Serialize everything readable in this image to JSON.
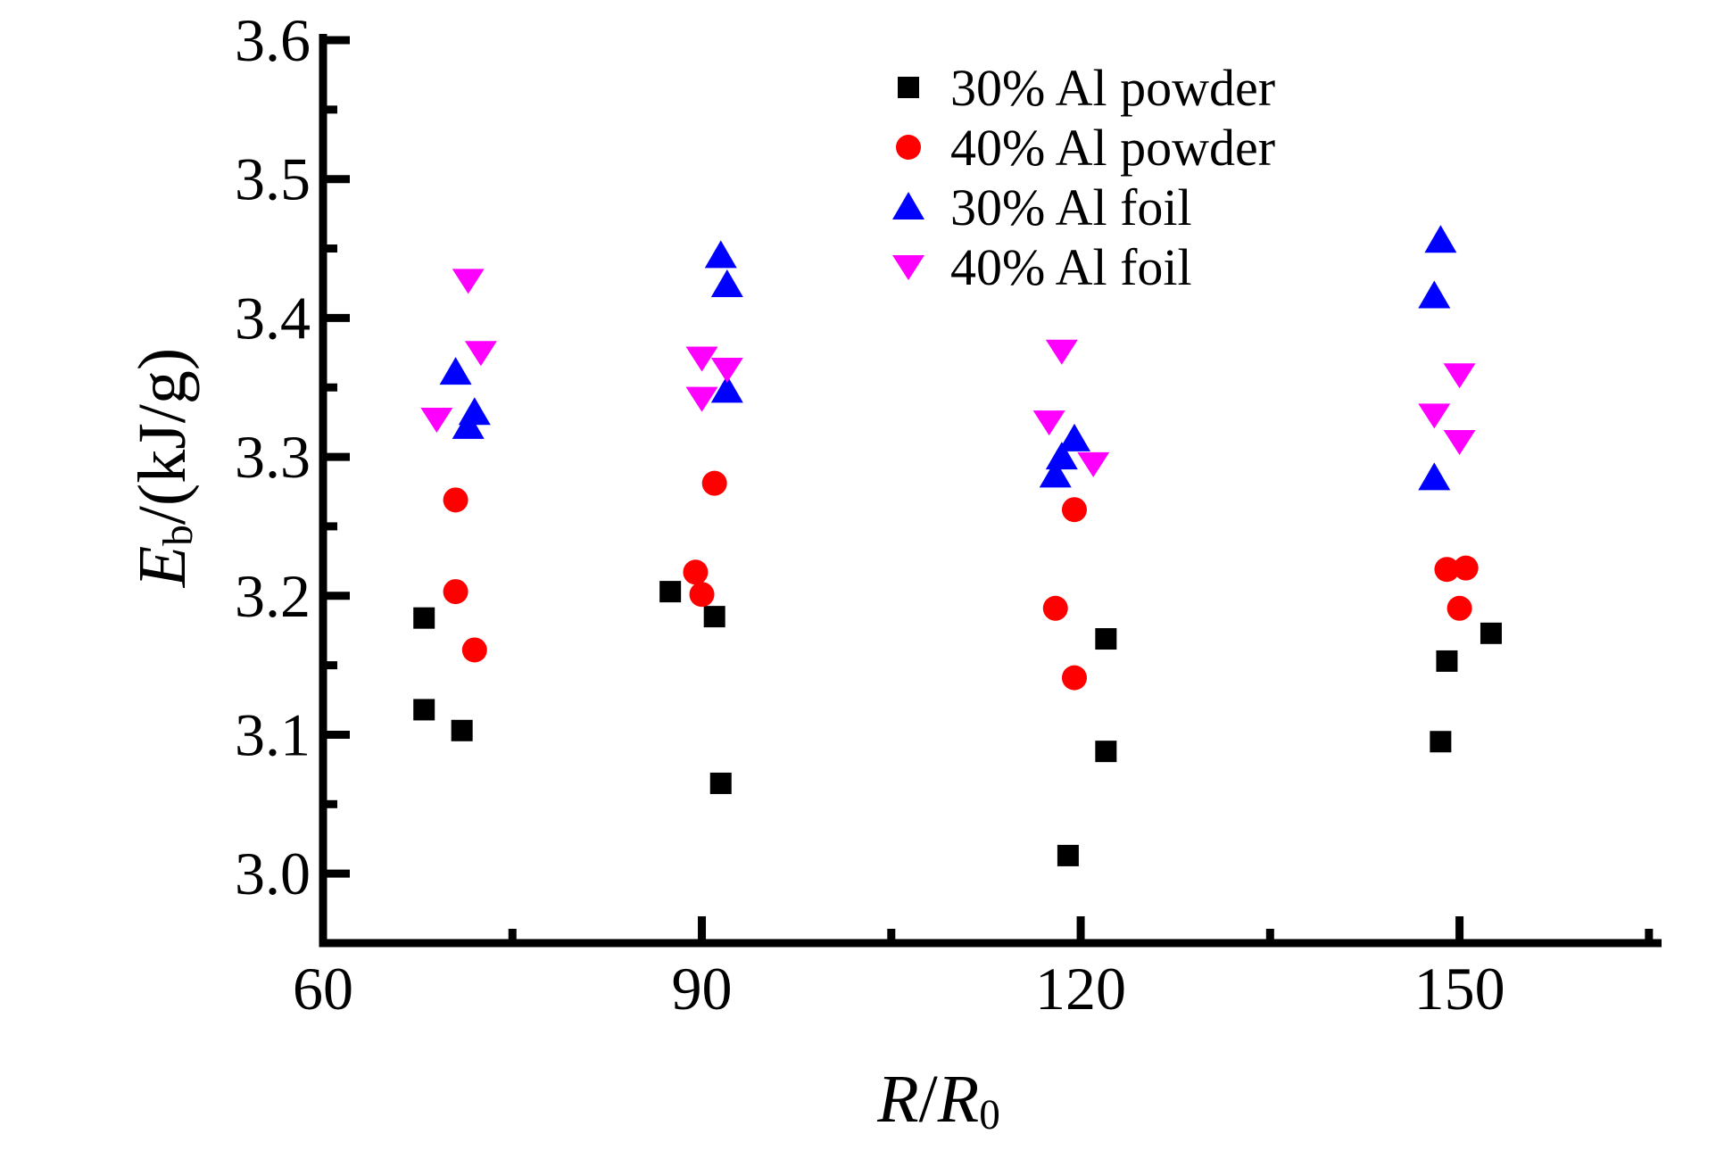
{
  "chart_data": {
    "type": "scatter",
    "title": "",
    "xlabel": "R/R0",
    "ylabel": "Eb/(kJ/g)",
    "xlim": [
      60,
      166
    ],
    "ylim": [
      2.95,
      3.6
    ],
    "x_major_ticks": [
      60,
      90,
      120,
      150
    ],
    "x_minor_ticks": [
      75,
      105,
      135,
      165
    ],
    "y_major_ticks": [
      3.0,
      3.1,
      3.2,
      3.3,
      3.4,
      3.5,
      3.6
    ],
    "y_minor_ticks": [
      3.05,
      3.15,
      3.25,
      3.35,
      3.45,
      3.55
    ],
    "grid": false,
    "legend_position": "upper-center-right",
    "series": [
      {
        "name": "30% Al powder",
        "marker": "square",
        "color": "#000000",
        "points": [
          [
            68,
            3.184
          ],
          [
            68,
            3.118
          ],
          [
            71,
            3.103
          ],
          [
            87.5,
            3.203
          ],
          [
            91,
            3.185
          ],
          [
            91.5,
            3.065
          ],
          [
            122,
            3.169
          ],
          [
            122,
            3.088
          ],
          [
            119,
            3.013
          ],
          [
            152.5,
            3.173
          ],
          [
            149,
            3.153
          ],
          [
            148.5,
            3.095
          ]
        ]
      },
      {
        "name": "40% Al powder",
        "marker": "circle",
        "color": "#ff0000",
        "points": [
          [
            70.5,
            3.269
          ],
          [
            70.5,
            3.203
          ],
          [
            72,
            3.161
          ],
          [
            91,
            3.281
          ],
          [
            89.5,
            3.217
          ],
          [
            90,
            3.201
          ],
          [
            119.5,
            3.262
          ],
          [
            118,
            3.191
          ],
          [
            119.5,
            3.141
          ],
          [
            149,
            3.219
          ],
          [
            150.5,
            3.22
          ],
          [
            150,
            3.191
          ]
        ]
      },
      {
        "name": "30% Al foil",
        "marker": "triangle-up",
        "color": "#0000ff",
        "points": [
          [
            70.5,
            3.361
          ],
          [
            72,
            3.332
          ],
          [
            71.5,
            3.322
          ],
          [
            91.5,
            3.445
          ],
          [
            92,
            3.424
          ],
          [
            92,
            3.348
          ],
          [
            119.5,
            3.313
          ],
          [
            118.5,
            3.3
          ],
          [
            118,
            3.287
          ],
          [
            148.5,
            3.456
          ],
          [
            148,
            3.416
          ],
          [
            148,
            3.285
          ]
        ]
      },
      {
        "name": "40% Al foil",
        "marker": "triangle-down",
        "color": "#ff00ff",
        "points": [
          [
            71.5,
            3.427
          ],
          [
            72.5,
            3.375
          ],
          [
            69,
            3.327
          ],
          [
            90,
            3.371
          ],
          [
            92,
            3.363
          ],
          [
            90,
            3.342
          ],
          [
            118.5,
            3.376
          ],
          [
            117.5,
            3.325
          ],
          [
            121,
            3.295
          ],
          [
            150,
            3.359
          ],
          [
            148,
            3.33
          ],
          [
            150,
            3.311
          ]
        ]
      }
    ]
  },
  "axis_labels": {
    "y_symbol": "E",
    "y_sub": "b",
    "y_units": "/(kJ/g)",
    "x_num": "R",
    "x_div": "/",
    "x_den": "R",
    "x_den_sub": "0"
  }
}
